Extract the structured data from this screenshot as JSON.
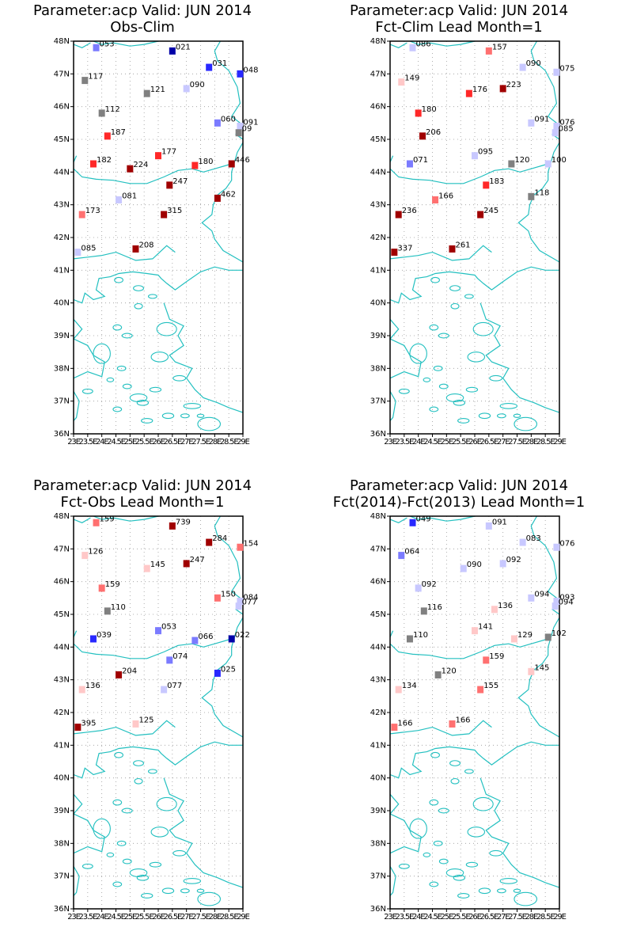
{
  "page_bg": "#ffffff",
  "coast_color": "#23c0c0",
  "grid_color": "#9a9a9a",
  "axes": {
    "lon_min": 23,
    "lon_max": 29,
    "lat_min": 36,
    "lat_max": 48,
    "lon_ticks": [
      23,
      23.5,
      24,
      24.5,
      25,
      25.5,
      26,
      26.5,
      27,
      27.5,
      28,
      28.5,
      29
    ],
    "lon_tick_labels": [
      "23E",
      "23.5E",
      "24E",
      "24.5E",
      "25E",
      "25.5E",
      "26E",
      "26.5E",
      "27E",
      "27.5E",
      "28E",
      "28.5E",
      "29E"
    ],
    "lat_ticks": [
      36,
      37,
      38,
      39,
      40,
      41,
      42,
      43,
      44,
      45,
      46,
      47,
      48
    ],
    "lat_tick_labels": [
      "36N",
      "37N",
      "38N",
      "39N",
      "40N",
      "41N",
      "42N",
      "43N",
      "44N",
      "45N",
      "46N",
      "47N",
      "48N"
    ]
  },
  "panels": [
    {
      "id": "obs-clim",
      "title1": "Parameter:acp Valid: JUN 2014",
      "title2": "Obs-Clim",
      "stations": [
        {
          "lon": 23.8,
          "lat": 47.8,
          "label": "053",
          "color": "#7b7bff"
        },
        {
          "lon": 26.5,
          "lat": 47.7,
          "label": "021",
          "color": "#0000a8"
        },
        {
          "lon": 27.8,
          "lat": 47.2,
          "label": "031",
          "color": "#2828ff"
        },
        {
          "lon": 28.9,
          "lat": 47.0,
          "label": "048",
          "color": "#2828ff"
        },
        {
          "lon": 23.4,
          "lat": 46.8,
          "label": "117",
          "color": "#808080"
        },
        {
          "lon": 25.6,
          "lat": 46.4,
          "label": "121",
          "color": "#808080"
        },
        {
          "lon": 27.0,
          "lat": 46.55,
          "label": "090",
          "color": "#c8c8ff"
        },
        {
          "lon": 24.0,
          "lat": 45.8,
          "label": "112",
          "color": "#808080"
        },
        {
          "lon": 28.1,
          "lat": 45.5,
          "label": "060",
          "color": "#7b7bff"
        },
        {
          "lon": 28.9,
          "lat": 45.4,
          "label": "091",
          "color": "#c8c8ff"
        },
        {
          "lon": 28.85,
          "lat": 45.2,
          "label": "09",
          "color": "#808080"
        },
        {
          "lon": 24.2,
          "lat": 45.1,
          "label": "187",
          "color": "#ff2828"
        },
        {
          "lon": 26.0,
          "lat": 44.5,
          "label": "177",
          "color": "#ff2828"
        },
        {
          "lon": 23.7,
          "lat": 44.25,
          "label": "182",
          "color": "#ff2828"
        },
        {
          "lon": 25.0,
          "lat": 44.1,
          "label": "224",
          "color": "#a00000"
        },
        {
          "lon": 27.3,
          "lat": 44.2,
          "label": "180",
          "color": "#ff2828"
        },
        {
          "lon": 28.6,
          "lat": 44.25,
          "label": "446",
          "color": "#a00000"
        },
        {
          "lon": 26.4,
          "lat": 43.6,
          "label": "247",
          "color": "#a00000"
        },
        {
          "lon": 24.6,
          "lat": 43.15,
          "label": "081",
          "color": "#c8c8ff"
        },
        {
          "lon": 28.1,
          "lat": 43.2,
          "label": "462",
          "color": "#a00000"
        },
        {
          "lon": 23.3,
          "lat": 42.7,
          "label": "173",
          "color": "#ff7070"
        },
        {
          "lon": 26.2,
          "lat": 42.7,
          "label": "315",
          "color": "#a00000"
        },
        {
          "lon": 25.2,
          "lat": 41.65,
          "label": "208",
          "color": "#a00000"
        },
        {
          "lon": 23.15,
          "lat": 41.55,
          "label": "085",
          "color": "#c8c8ff"
        }
      ]
    },
    {
      "id": "fct-clim",
      "title1": "Parameter:acp Valid: JUN 2014",
      "title2": "Fct-Clim Lead Month=1",
      "stations": [
        {
          "lon": 23.8,
          "lat": 47.8,
          "label": "086",
          "color": "#c8c8ff"
        },
        {
          "lon": 26.5,
          "lat": 47.7,
          "label": "157",
          "color": "#ff7070"
        },
        {
          "lon": 27.7,
          "lat": 47.2,
          "label": "090",
          "color": "#c8c8ff"
        },
        {
          "lon": 28.9,
          "lat": 47.05,
          "label": "075",
          "color": "#c8c8ff"
        },
        {
          "lon": 23.4,
          "lat": 46.75,
          "label": "149",
          "color": "#ffc8c8"
        },
        {
          "lon": 25.8,
          "lat": 46.4,
          "label": "176",
          "color": "#ff2828"
        },
        {
          "lon": 27.0,
          "lat": 46.55,
          "label": "223",
          "color": "#a00000"
        },
        {
          "lon": 24.0,
          "lat": 45.8,
          "label": "180",
          "color": "#ff2828"
        },
        {
          "lon": 28.0,
          "lat": 45.5,
          "label": "091",
          "color": "#c8c8ff"
        },
        {
          "lon": 28.9,
          "lat": 45.4,
          "label": "076",
          "color": "#c8c8ff"
        },
        {
          "lon": 28.85,
          "lat": 45.2,
          "label": "085",
          "color": "#c8c8ff"
        },
        {
          "lon": 24.15,
          "lat": 45.1,
          "label": "206",
          "color": "#a00000"
        },
        {
          "lon": 26.0,
          "lat": 44.5,
          "label": "095",
          "color": "#c8c8ff"
        },
        {
          "lon": 23.7,
          "lat": 44.25,
          "label": "071",
          "color": "#7b7bff"
        },
        {
          "lon": 27.3,
          "lat": 44.25,
          "label": "120",
          "color": "#808080"
        },
        {
          "lon": 28.6,
          "lat": 44.25,
          "label": "100",
          "color": "#c8c8ff"
        },
        {
          "lon": 26.4,
          "lat": 43.6,
          "label": "183",
          "color": "#ff2828"
        },
        {
          "lon": 24.6,
          "lat": 43.15,
          "label": "166",
          "color": "#ff7070"
        },
        {
          "lon": 28.0,
          "lat": 43.25,
          "label": "118",
          "color": "#808080"
        },
        {
          "lon": 23.3,
          "lat": 42.7,
          "label": "236",
          "color": "#a00000"
        },
        {
          "lon": 26.2,
          "lat": 42.7,
          "label": "245",
          "color": "#a00000"
        },
        {
          "lon": 25.2,
          "lat": 41.65,
          "label": "261",
          "color": "#a00000"
        },
        {
          "lon": 23.15,
          "lat": 41.55,
          "label": "337",
          "color": "#a00000"
        }
      ]
    },
    {
      "id": "fct-obs",
      "title1": "Parameter:acp Valid: JUN 2014",
      "title2": "Fct-Obs Lead Month=1",
      "stations": [
        {
          "lon": 23.8,
          "lat": 47.8,
          "label": "159",
          "color": "#ff7070"
        },
        {
          "lon": 26.5,
          "lat": 47.7,
          "label": "739",
          "color": "#a00000"
        },
        {
          "lon": 27.8,
          "lat": 47.2,
          "label": "284",
          "color": "#a00000"
        },
        {
          "lon": 28.9,
          "lat": 47.05,
          "label": "154",
          "color": "#ff7070"
        },
        {
          "lon": 23.4,
          "lat": 46.8,
          "label": "126",
          "color": "#ffc8c8"
        },
        {
          "lon": 25.6,
          "lat": 46.4,
          "label": "145",
          "color": "#ffc8c8"
        },
        {
          "lon": 27.0,
          "lat": 46.55,
          "label": "247",
          "color": "#a00000"
        },
        {
          "lon": 24.0,
          "lat": 45.8,
          "label": "159",
          "color": "#ff7070"
        },
        {
          "lon": 28.1,
          "lat": 45.5,
          "label": "150",
          "color": "#ff7070"
        },
        {
          "lon": 28.9,
          "lat": 45.4,
          "label": "084",
          "color": "#c8c8ff"
        },
        {
          "lon": 28.85,
          "lat": 45.25,
          "label": "077",
          "color": "#c8c8ff"
        },
        {
          "lon": 24.2,
          "lat": 45.1,
          "label": "110",
          "color": "#808080"
        },
        {
          "lon": 26.0,
          "lat": 44.5,
          "label": "053",
          "color": "#7b7bff"
        },
        {
          "lon": 23.7,
          "lat": 44.25,
          "label": "039",
          "color": "#2828ff"
        },
        {
          "lon": 27.3,
          "lat": 44.2,
          "label": "066",
          "color": "#7b7bff"
        },
        {
          "lon": 28.6,
          "lat": 44.25,
          "label": "022",
          "color": "#0000a8"
        },
        {
          "lon": 26.4,
          "lat": 43.6,
          "label": "074",
          "color": "#7b7bff"
        },
        {
          "lon": 24.6,
          "lat": 43.15,
          "label": "204",
          "color": "#a00000"
        },
        {
          "lon": 28.1,
          "lat": 43.2,
          "label": "025",
          "color": "#2828ff"
        },
        {
          "lon": 23.3,
          "lat": 42.7,
          "label": "136",
          "color": "#ffc8c8"
        },
        {
          "lon": 26.2,
          "lat": 42.7,
          "label": "077",
          "color": "#c8c8ff"
        },
        {
          "lon": 25.2,
          "lat": 41.65,
          "label": "125",
          "color": "#ffc8c8"
        },
        {
          "lon": 23.15,
          "lat": 41.55,
          "label": "395",
          "color": "#a00000"
        }
      ]
    },
    {
      "id": "fct-fct",
      "title1": "Parameter:acp Valid: JUN 2014",
      "title2": "Fct(2014)-Fct(2013) Lead Month=1",
      "stations": [
        {
          "lon": 23.8,
          "lat": 47.8,
          "label": "049",
          "color": "#2828ff"
        },
        {
          "lon": 26.5,
          "lat": 47.7,
          "label": "091",
          "color": "#c8c8ff"
        },
        {
          "lon": 27.7,
          "lat": 47.2,
          "label": "083",
          "color": "#c8c8ff"
        },
        {
          "lon": 28.9,
          "lat": 47.05,
          "label": "076",
          "color": "#c8c8ff"
        },
        {
          "lon": 23.4,
          "lat": 46.8,
          "label": "064",
          "color": "#7b7bff"
        },
        {
          "lon": 25.6,
          "lat": 46.4,
          "label": "090",
          "color": "#c8c8ff"
        },
        {
          "lon": 27.0,
          "lat": 46.55,
          "label": "092",
          "color": "#c8c8ff"
        },
        {
          "lon": 24.0,
          "lat": 45.8,
          "label": "092",
          "color": "#c8c8ff"
        },
        {
          "lon": 28.0,
          "lat": 45.5,
          "label": "094",
          "color": "#c8c8ff"
        },
        {
          "lon": 28.9,
          "lat": 45.4,
          "label": "093",
          "color": "#c8c8ff"
        },
        {
          "lon": 28.85,
          "lat": 45.25,
          "label": "094",
          "color": "#c8c8ff"
        },
        {
          "lon": 24.2,
          "lat": 45.1,
          "label": "116",
          "color": "#808080"
        },
        {
          "lon": 26.7,
          "lat": 45.15,
          "label": "136",
          "color": "#ffc8c8"
        },
        {
          "lon": 26.0,
          "lat": 44.5,
          "label": "141",
          "color": "#ffc8c8"
        },
        {
          "lon": 23.7,
          "lat": 44.25,
          "label": "110",
          "color": "#808080"
        },
        {
          "lon": 27.4,
          "lat": 44.25,
          "label": "129",
          "color": "#ffc8c8"
        },
        {
          "lon": 28.6,
          "lat": 44.3,
          "label": "102",
          "color": "#808080"
        },
        {
          "lon": 26.4,
          "lat": 43.6,
          "label": "159",
          "color": "#ff7070"
        },
        {
          "lon": 24.7,
          "lat": 43.15,
          "label": "120",
          "color": "#808080"
        },
        {
          "lon": 28.0,
          "lat": 43.25,
          "label": "145",
          "color": "#ffc8c8"
        },
        {
          "lon": 23.3,
          "lat": 42.7,
          "label": "134",
          "color": "#ffc8c8"
        },
        {
          "lon": 26.2,
          "lat": 42.7,
          "label": "155",
          "color": "#ff7070"
        },
        {
          "lon": 25.2,
          "lat": 41.65,
          "label": "166",
          "color": "#ff7070"
        },
        {
          "lon": 23.15,
          "lat": 41.55,
          "label": "166",
          "color": "#ff7070"
        }
      ]
    }
  ]
}
